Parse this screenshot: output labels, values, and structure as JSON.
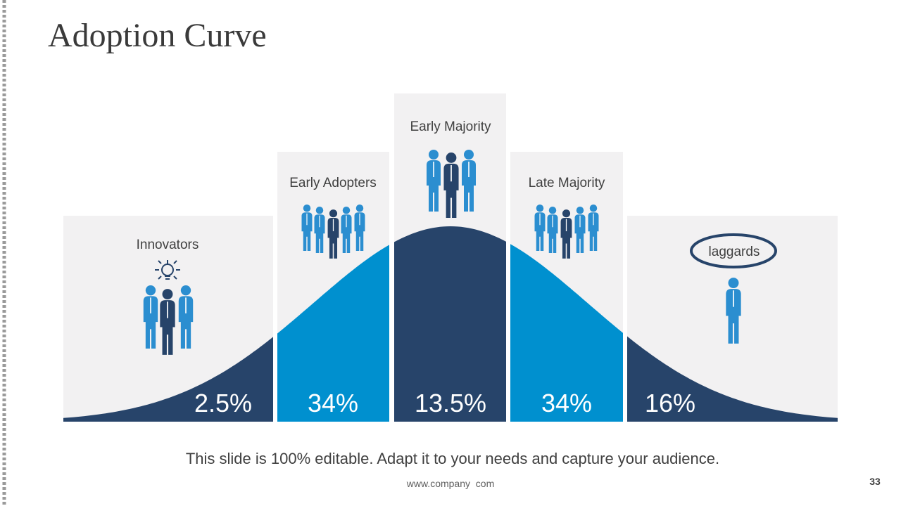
{
  "title": "Adoption Curve",
  "segments": [
    {
      "label": "Innovators",
      "value": "2.5%"
    },
    {
      "label": "Early Adopters",
      "value": "34%"
    },
    {
      "label": "Early Majority",
      "value": "13.5%"
    },
    {
      "label": "Late Majority",
      "value": "34%"
    },
    {
      "label": "laggards",
      "value": "16%"
    }
  ],
  "footer": "This slide is 100% editable. Adapt it to your needs and capture your audience.",
  "website": "www.company  com",
  "page_number": "33"
}
